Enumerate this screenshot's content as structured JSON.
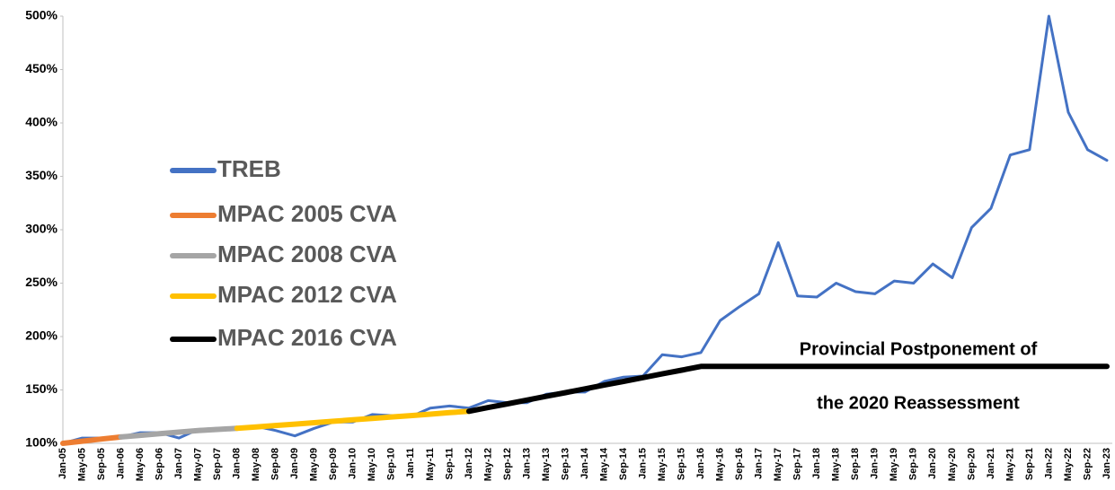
{
  "chart_data": {
    "type": "line",
    "categories": [
      "Jan-05",
      "May-05",
      "Sep-05",
      "Jan-06",
      "May-06",
      "Sep-06",
      "Jan-07",
      "May-07",
      "Sep-07",
      "Jan-08",
      "May-08",
      "Sep-08",
      "Jan-09",
      "May-09",
      "Sep-09",
      "Jan-10",
      "May-10",
      "Sep-10",
      "Jan-11",
      "May-11",
      "Sep-11",
      "Jan-12",
      "May-12",
      "Sep-12",
      "Jan-13",
      "May-13",
      "Sep-13",
      "Jan-14",
      "May-14",
      "Sep-14",
      "Jan-15",
      "May-15",
      "Sep-15",
      "Jan-16",
      "May-16",
      "Sep-16",
      "Jan-17",
      "May-17",
      "Sep-17",
      "Jan-18",
      "May-18",
      "Sep-18",
      "Jan-19",
      "May-19",
      "Sep-19",
      "Jan-20",
      "May-20",
      "Sep-20",
      "Jan-21",
      "May-21",
      "Sep-21",
      "Jan-22",
      "May-22",
      "Sep-22",
      "Jan-23"
    ],
    "series": [
      {
        "name": "TREB",
        "color": "#4472c4",
        "values": [
          100,
          105,
          105,
          106,
          110,
          110,
          105,
          113,
          114,
          113,
          116,
          112,
          107,
          114,
          120,
          120,
          127,
          126,
          125,
          133,
          135,
          133,
          140,
          138,
          138,
          146,
          148,
          148,
          158,
          162,
          163,
          183,
          181,
          185,
          215,
          228,
          240,
          288,
          238,
          237,
          250,
          242,
          240,
          252,
          250,
          268,
          255,
          302,
          320,
          370,
          375,
          500,
          410,
          375,
          365
        ]
      },
      {
        "name": "MPAC 2005 CVA",
        "color": "#ed7d31",
        "values": [
          100,
          102,
          104,
          106,
          null,
          null,
          null,
          null,
          null,
          null,
          null,
          null,
          null,
          null,
          null,
          null,
          null,
          null,
          null,
          null,
          null,
          null,
          null,
          null,
          null,
          null,
          null,
          null,
          null,
          null,
          null,
          null,
          null,
          null,
          null,
          null,
          null,
          null,
          null,
          null,
          null,
          null,
          null,
          null,
          null,
          null,
          null,
          null,
          null,
          null,
          null,
          null,
          null,
          null,
          null
        ]
      },
      {
        "name": "MPAC 2008 CVA",
        "color": "#a5a5a5",
        "values": [
          null,
          null,
          null,
          106,
          107.5,
          109,
          110.5,
          112,
          113,
          114,
          null,
          null,
          null,
          null,
          null,
          null,
          null,
          null,
          null,
          null,
          null,
          null,
          null,
          null,
          null,
          null,
          null,
          null,
          null,
          null,
          null,
          null,
          null,
          null,
          null,
          null,
          null,
          null,
          null,
          null,
          null,
          null,
          null,
          null,
          null,
          null,
          null,
          null,
          null,
          null,
          null,
          null,
          null,
          null,
          null
        ]
      },
      {
        "name": "MPAC 2012 CVA",
        "color": "#ffc000",
        "values": [
          null,
          null,
          null,
          null,
          null,
          null,
          null,
          null,
          null,
          114,
          115.3,
          116.7,
          118,
          119.3,
          120.7,
          122,
          123.3,
          124.7,
          126,
          127.3,
          128.7,
          130,
          null,
          null,
          null,
          null,
          null,
          null,
          null,
          null,
          null,
          null,
          null,
          null,
          null,
          null,
          null,
          null,
          null,
          null,
          null,
          null,
          null,
          null,
          null,
          null,
          null,
          null,
          null,
          null,
          null,
          null,
          null,
          null,
          null
        ]
      },
      {
        "name": "MPAC 2016 CVA",
        "color": "#000000",
        "values": [
          null,
          null,
          null,
          null,
          null,
          null,
          null,
          null,
          null,
          null,
          null,
          null,
          null,
          null,
          null,
          null,
          null,
          null,
          null,
          null,
          null,
          130,
          133.5,
          137,
          140.5,
          144,
          147.5,
          151,
          154.5,
          158,
          161.5,
          165,
          168.5,
          172,
          172,
          172,
          172,
          172,
          172,
          172,
          172,
          172,
          172,
          172,
          172,
          172,
          172,
          172,
          172,
          172,
          172,
          172,
          172,
          172,
          172
        ]
      }
    ],
    "ylim": [
      100,
      500
    ],
    "yticks": [
      {
        "value": 100,
        "label": "100%"
      },
      {
        "value": 150,
        "label": "150%"
      },
      {
        "value": 200,
        "label": "200%"
      },
      {
        "value": 250,
        "label": "250%"
      },
      {
        "value": 300,
        "label": "300%"
      },
      {
        "value": 350,
        "label": "350%"
      },
      {
        "value": 400,
        "label": "400%"
      },
      {
        "value": 450,
        "label": "450%"
      },
      {
        "value": 500,
        "label": "500%"
      }
    ],
    "annotation": [
      "Provincial Postponement of",
      "the 2020 Reassessment"
    ],
    "grid": false
  }
}
